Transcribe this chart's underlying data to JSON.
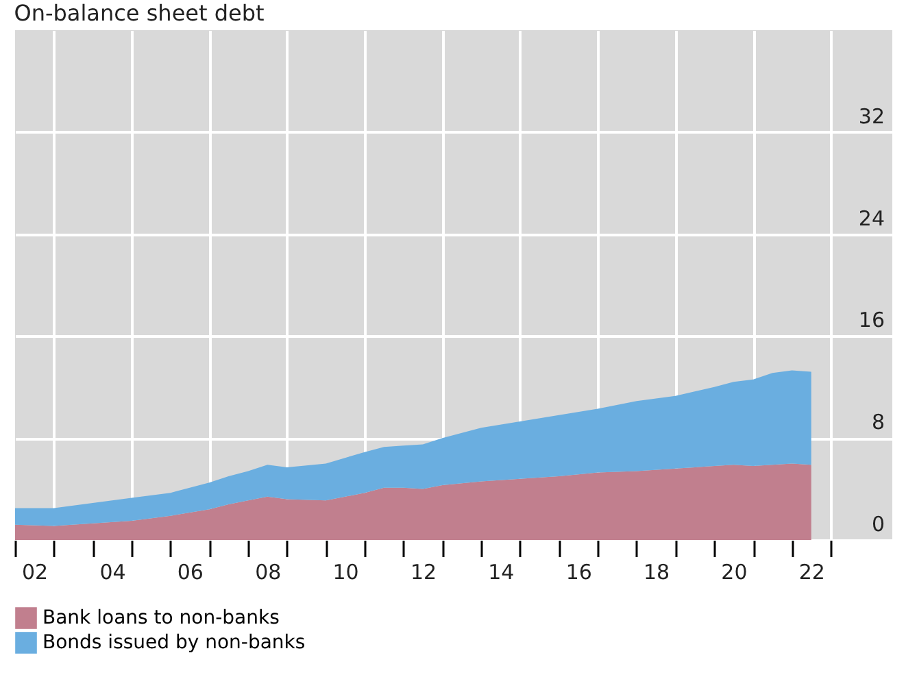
{
  "chart_data": {
    "type": "area",
    "title": "On-balance sheet debt",
    "stacked": true,
    "legend": "bottom left",
    "grid": true,
    "x": [
      "2002-01",
      "2003-01",
      "2004-01",
      "2005-01",
      "2006-01",
      "2007-01",
      "2007-07",
      "2008-01",
      "2008-07",
      "2009-01",
      "2010-01",
      "2011-01",
      "2011-07",
      "2012-01",
      "2012-07",
      "2013-01",
      "2014-01",
      "2015-01",
      "2016-01",
      "2017-01",
      "2018-01",
      "2019-01",
      "2020-01",
      "2020-07",
      "2021-01",
      "2021-07",
      "2022-01",
      "2022-07"
    ],
    "series": [
      {
        "name": "Bank loans to non-banks",
        "color": "#c17f8e",
        "values": [
          1.2,
          1.1,
          1.3,
          1.5,
          1.9,
          2.4,
          2.8,
          3.1,
          3.4,
          3.2,
          3.1,
          3.7,
          4.1,
          4.1,
          4.0,
          4.3,
          4.6,
          4.8,
          5.0,
          5.3,
          5.4,
          5.6,
          5.8,
          5.9,
          5.8,
          5.9,
          6.0,
          5.9
        ]
      },
      {
        "name": "Bonds issued by non-banks",
        "color": "#6aaee0",
        "values": [
          1.3,
          1.4,
          1.6,
          1.8,
          1.8,
          2.1,
          2.2,
          2.3,
          2.5,
          2.5,
          2.9,
          3.2,
          3.2,
          3.3,
          3.5,
          3.7,
          4.2,
          4.5,
          4.8,
          5.0,
          5.5,
          5.7,
          6.2,
          6.5,
          6.8,
          7.2,
          7.3,
          7.3
        ]
      }
    ],
    "xlim": [
      "2002-01-01",
      "2024-08-01"
    ],
    "xticks": [
      {
        "value": "2002-01-01",
        "label": null
      },
      {
        "value": "2002-07-01",
        "label": "02"
      },
      {
        "value": "2003-01-01",
        "label": null
      },
      {
        "value": "2004-01-01",
        "label": null
      },
      {
        "value": "2004-07-01",
        "label": "04"
      },
      {
        "value": "2005-01-01",
        "label": null
      },
      {
        "value": "2006-01-01",
        "label": null
      },
      {
        "value": "2006-07-01",
        "label": "06"
      },
      {
        "value": "2007-01-01",
        "label": null
      },
      {
        "value": "2008-01-01",
        "label": null
      },
      {
        "value": "2008-07-01",
        "label": "08"
      },
      {
        "value": "2009-01-01",
        "label": null
      },
      {
        "value": "2010-01-01",
        "label": null
      },
      {
        "value": "2010-07-01",
        "label": "10"
      },
      {
        "value": "2011-01-01",
        "label": null
      },
      {
        "value": "2012-01-01",
        "label": null
      },
      {
        "value": "2012-07-01",
        "label": "12"
      },
      {
        "value": "2013-01-01",
        "label": null
      },
      {
        "value": "2014-01-01",
        "label": null
      },
      {
        "value": "2014-07-01",
        "label": "14"
      },
      {
        "value": "2015-01-01",
        "label": null
      },
      {
        "value": "2016-01-01",
        "label": null
      },
      {
        "value": "2016-07-01",
        "label": "16"
      },
      {
        "value": "2017-01-01",
        "label": null
      },
      {
        "value": "2018-01-01",
        "label": null
      },
      {
        "value": "2018-07-01",
        "label": "18"
      },
      {
        "value": "2019-01-01",
        "label": null
      },
      {
        "value": "2020-01-01",
        "label": null
      },
      {
        "value": "2020-07-01",
        "label": "20"
      },
      {
        "value": "2021-01-01",
        "label": null
      },
      {
        "value": "2022-01-01",
        "label": null
      },
      {
        "value": "2022-07-01",
        "label": "22"
      },
      {
        "value": "2023-01-01",
        "label": null
      }
    ],
    "ylim": [
      0,
      40
    ],
    "yticks": [
      0,
      8,
      16,
      24,
      32
    ]
  }
}
